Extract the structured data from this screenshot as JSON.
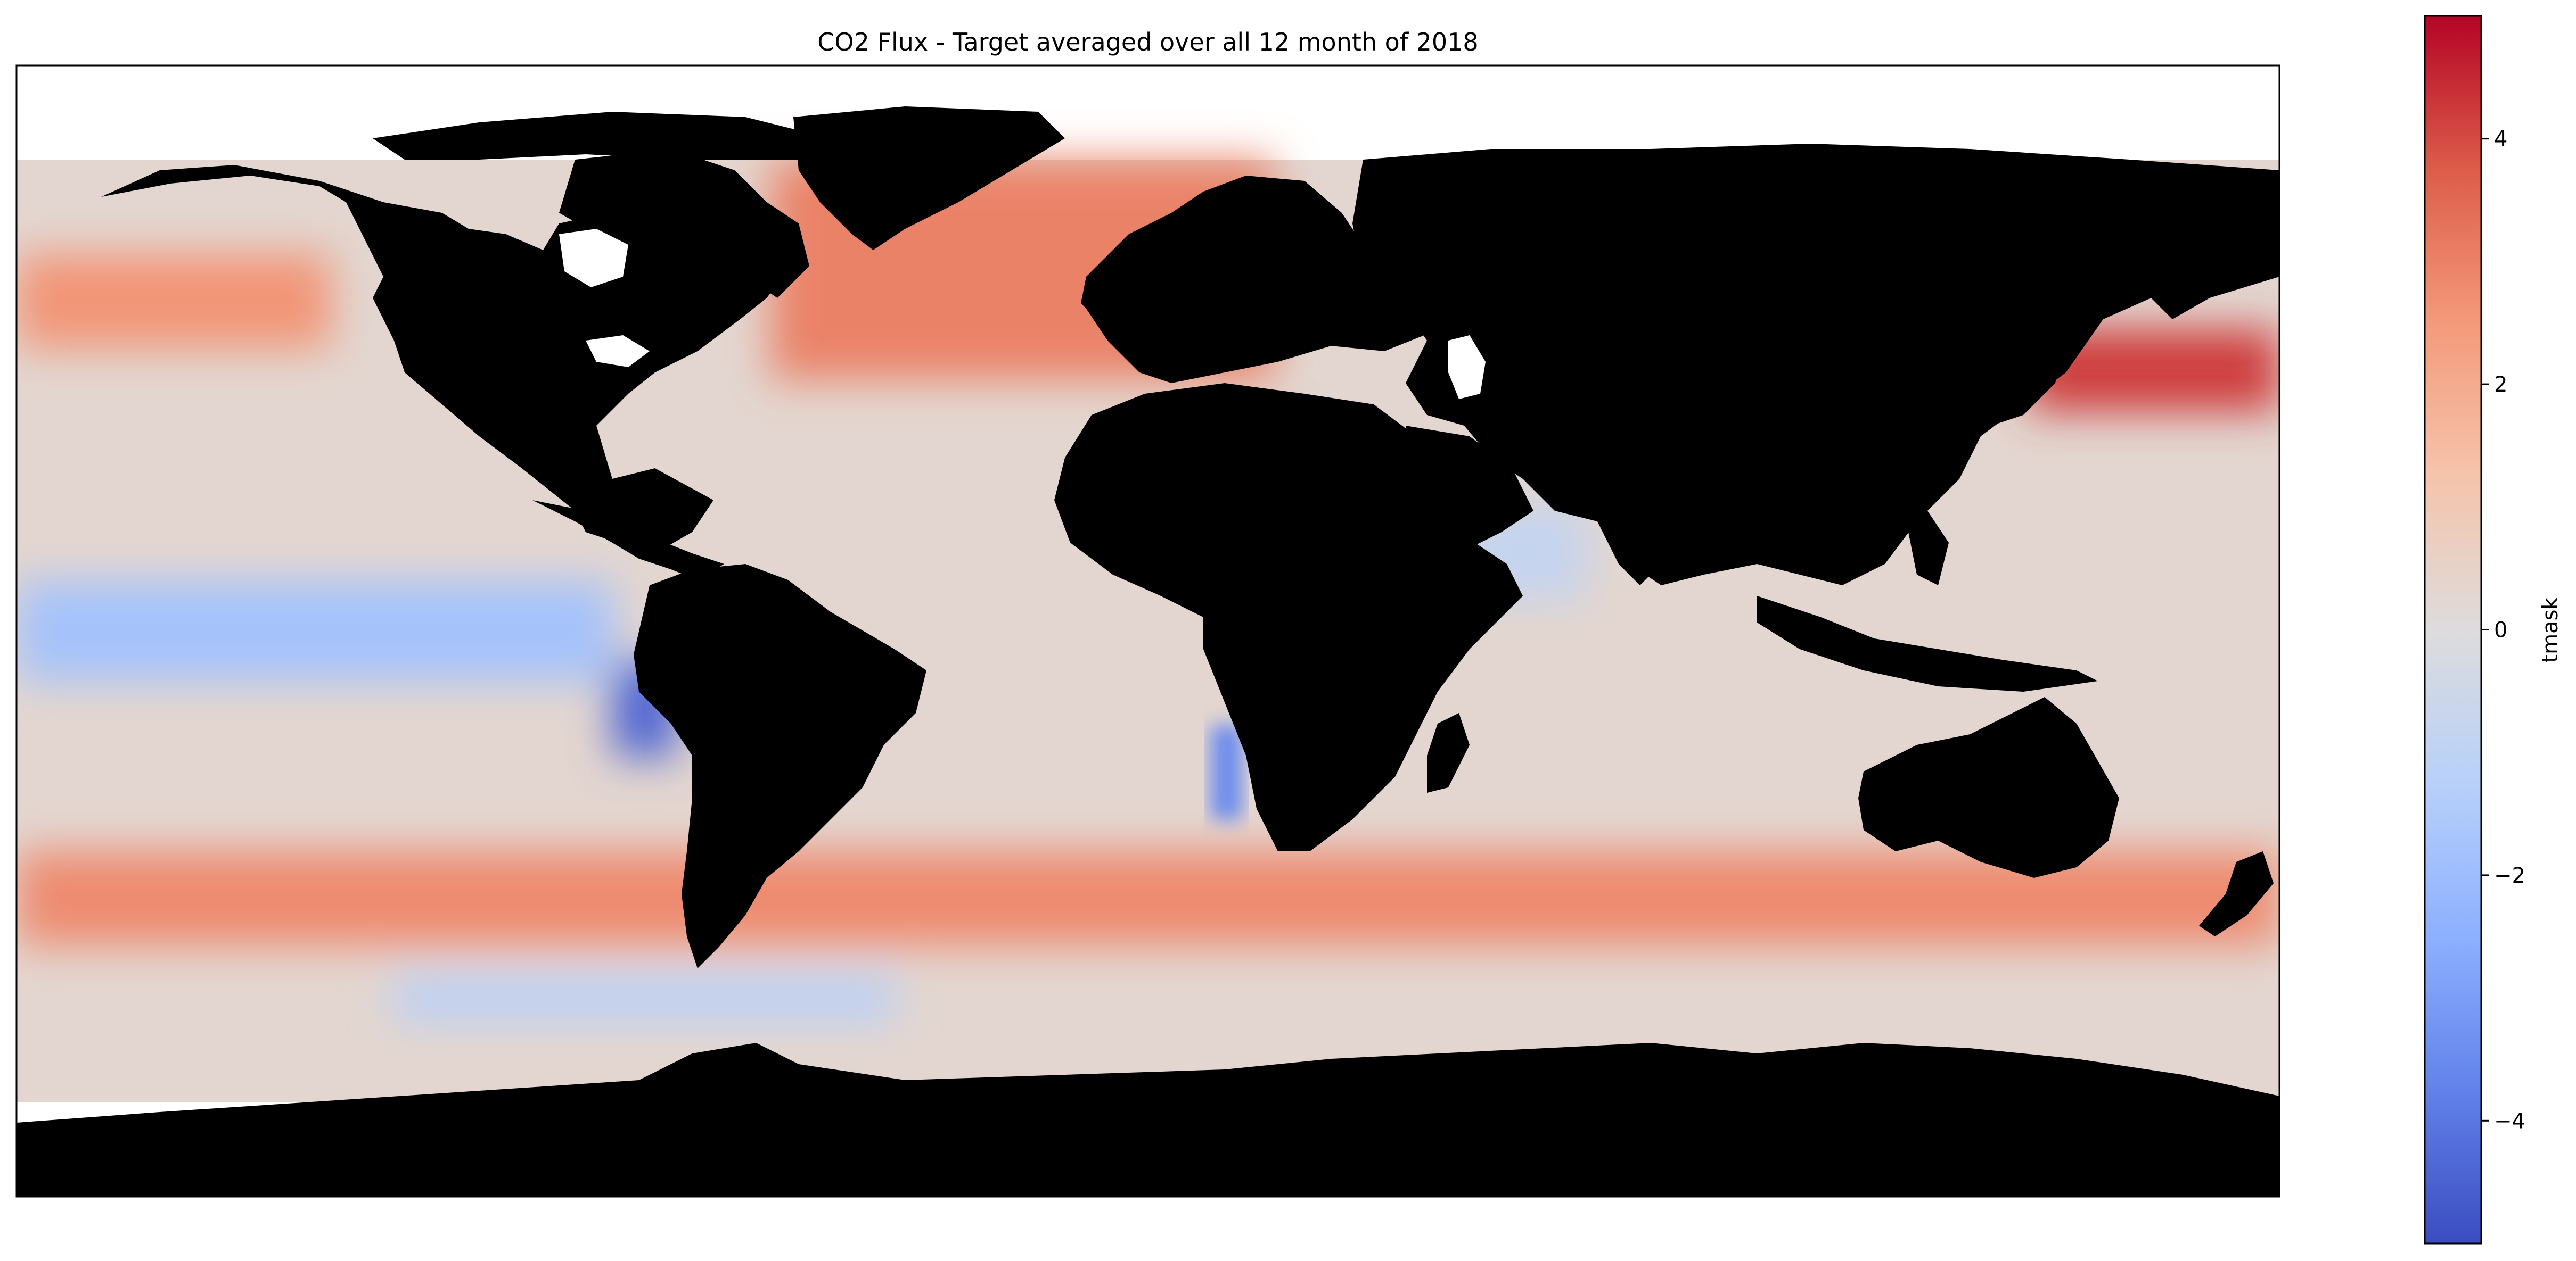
{
  "figure": {
    "title": "CO2 Flux - Target averaged over all 12 month of 2018",
    "projection": "PlateCarree",
    "map": {
      "lon_range": [
        -180,
        180
      ],
      "lat_range": [
        -90,
        90
      ],
      "ocean_data_lat_range": [
        -75,
        75
      ],
      "land_color": "#000000",
      "missing_color": "#ffffff",
      "colormap": "coolwarm"
    },
    "colorbar": {
      "label": "tmask",
      "vmin": -5,
      "vmax": 5,
      "ticks": [
        {
          "value": 4,
          "label": "4"
        },
        {
          "value": 2,
          "label": "2"
        },
        {
          "value": 0,
          "label": "0"
        },
        {
          "value": -2,
          "label": "−2"
        },
        {
          "value": -4,
          "label": "−4"
        }
      ],
      "stops": [
        {
          "value": -5,
          "color": "#3b4cc0"
        },
        {
          "value": -3.75,
          "color": "#6282ea"
        },
        {
          "value": -2.5,
          "color": "#8db0fe"
        },
        {
          "value": -1.25,
          "color": "#b8d0f9"
        },
        {
          "value": 0,
          "color": "#dddcdc"
        },
        {
          "value": 1.25,
          "color": "#f5c4ac"
        },
        {
          "value": 2.5,
          "color": "#f49a7b"
        },
        {
          "value": 3.75,
          "color": "#dc5d4a"
        },
        {
          "value": 5,
          "color": "#b40426"
        }
      ]
    },
    "flux_bands": [
      {
        "region": "north-pacific-high-flux",
        "lon": [
          -180,
          -130
        ],
        "lat": [
          45,
          60
        ],
        "value": 2.6
      },
      {
        "region": "equatorial-pacific-outgassing",
        "lon": [
          -180,
          -85
        ],
        "lat": [
          -8,
          8
        ],
        "value": -1.8
      },
      {
        "region": "peru-upwelling",
        "lon": [
          -85,
          -75
        ],
        "lat": [
          -20,
          -5
        ],
        "value": -4.5
      },
      {
        "region": "north-atlantic-sink",
        "lon": [
          -60,
          20
        ],
        "lat": [
          40,
          75
        ],
        "value": 3.0
      },
      {
        "region": "kuroshio-sink",
        "lon": [
          140,
          180
        ],
        "lat": [
          35,
          48
        ],
        "value": 4.2
      },
      {
        "region": "southern-ocean-sink",
        "lon": [
          -180,
          180
        ],
        "lat": [
          -50,
          -35
        ],
        "value": 2.8
      },
      {
        "region": "southern-ocean-outgassing",
        "lon": [
          -120,
          -40
        ],
        "lat": [
          -62,
          -55
        ],
        "value": -1.2
      },
      {
        "region": "benguela-upwelling",
        "lon": [
          10,
          15
        ],
        "lat": [
          -30,
          -15
        ],
        "value": -3.5
      },
      {
        "region": "arabian-sea-outgassing",
        "lon": [
          50,
          70
        ],
        "lat": [
          5,
          20
        ],
        "value": -0.8
      }
    ]
  }
}
